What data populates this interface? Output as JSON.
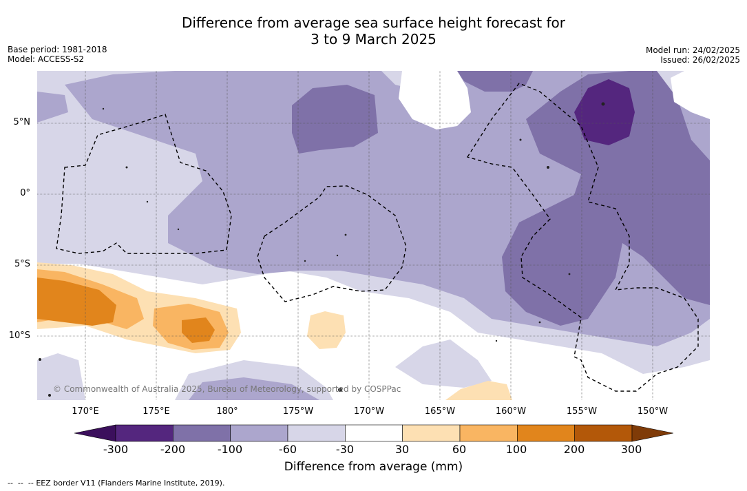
{
  "title": {
    "line1": "Difference from average sea surface height forecast for",
    "line2": "3 to 9 March 2025"
  },
  "meta_left": {
    "base_period": "Base period: 1981-2018",
    "model": "Model: ACCESS-S2"
  },
  "meta_right": {
    "model_run": "Model run: 24/02/2025",
    "issued": "Issued: 26/02/2025"
  },
  "map": {
    "lat_labels": [
      "5°N",
      "0°",
      "5°S",
      "10°S"
    ],
    "lon_labels": [
      "170°E",
      "175°E",
      "180°",
      "175°W",
      "170°W",
      "165°W",
      "160°W",
      "155°W",
      "150°W"
    ],
    "copyright": "© Commonwealth of Australia 2025, Bureau of Meteorology, supported by COSPPac",
    "gridlines": true,
    "eez_border_style": "dashed"
  },
  "colorbar": {
    "title": "Difference from average (mm)",
    "labels": [
      "-300",
      "-200",
      "-100",
      "-60",
      "-30",
      "30",
      "60",
      "100",
      "200",
      "300"
    ],
    "colors": [
      "#3b0f5c",
      "#54267e",
      "#7f71a8",
      "#aca6cd",
      "#d7d6e8",
      "#ffffff",
      "#fde0b3",
      "#f9b562",
      "#e1851c",
      "#b35809",
      "#7f3b08"
    ],
    "extend": "both"
  },
  "footer": {
    "legend_line": "EEZ border V11 (Flanders Marine Institute, 2019)."
  }
}
